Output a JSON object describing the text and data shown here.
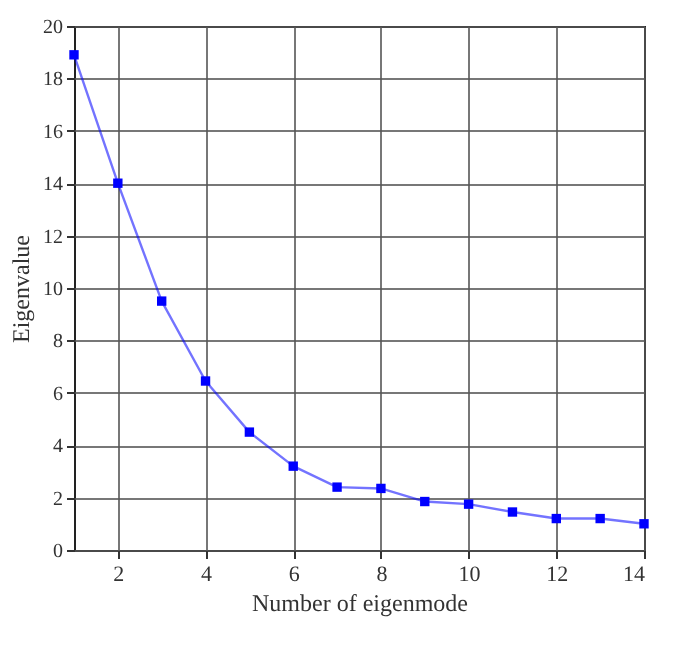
{
  "chart_data": {
    "type": "line",
    "xlabel": "Number of eigenmode",
    "ylabel": "Eigenvalue",
    "x": [
      1,
      2,
      3,
      4,
      5,
      6,
      7,
      8,
      9,
      10,
      11,
      12,
      13,
      14
    ],
    "series": [
      {
        "color": "#0000ff",
        "values": [
          18.9,
          14.0,
          9.5,
          6.45,
          4.5,
          3.2,
          2.4,
          2.35,
          1.85,
          1.75,
          1.45,
          1.2,
          1.2,
          1.0
        ]
      }
    ],
    "xlim": [
      1,
      14
    ],
    "xticks": [
      2,
      4,
      6,
      8,
      10,
      12,
      14
    ],
    "ylim": [
      0,
      20
    ],
    "yticks": [
      0,
      2,
      4,
      6,
      8,
      10,
      12,
      14,
      16,
      18,
      20
    ],
    "grid": true,
    "marker": "square",
    "line_style": "solid"
  }
}
